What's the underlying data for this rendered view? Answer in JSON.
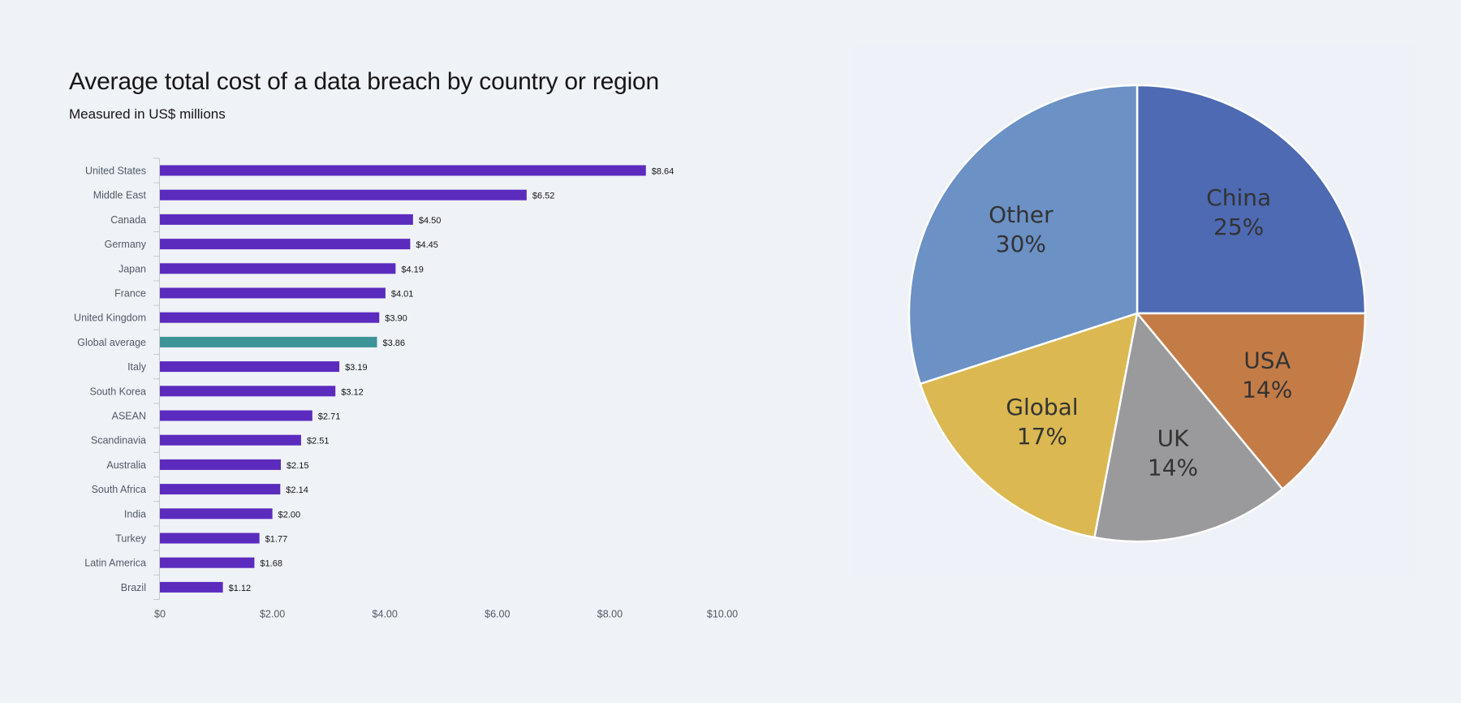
{
  "chart_data": [
    {
      "type": "bar",
      "orientation": "horizontal",
      "title": "Average total cost of a data breach by country or region",
      "subtitle": "Measured in US$ millions",
      "categories": [
        "United States",
        "Middle East",
        "Canada",
        "Germany",
        "Japan",
        "France",
        "United Kingdom",
        "Global average",
        "Italy",
        "South Korea",
        "ASEAN",
        "Scandinavia",
        "Australia",
        "South Africa",
        "India",
        "Turkey",
        "Latin America",
        "Brazil"
      ],
      "values": [
        8.64,
        6.52,
        4.5,
        4.45,
        4.19,
        4.01,
        3.9,
        3.86,
        3.19,
        3.12,
        2.71,
        2.51,
        2.15,
        2.14,
        2.0,
        1.77,
        1.68,
        1.12
      ],
      "value_labels": [
        "$8.64",
        "$6.52",
        "$4.50",
        "$4.45",
        "$4.19",
        "$4.01",
        "$3.90",
        "$3.86",
        "$3.19",
        "$3.12",
        "$2.71",
        "$2.51",
        "$2.15",
        "$2.14",
        "$2.00",
        "$1.77",
        "$1.68",
        "$1.12"
      ],
      "xticks": [
        0,
        2,
        4,
        6,
        8,
        10
      ],
      "xtick_labels": [
        "$0",
        "$2.00",
        "$4.00",
        "$6.00",
        "$8.00",
        "$10.00"
      ],
      "xlim": [
        0,
        10
      ],
      "grid": false,
      "colors": {
        "default": "#5b2bbe",
        "highlight": "#3e9397",
        "highlight_category": "Global average"
      }
    },
    {
      "type": "pie",
      "slices": [
        {
          "label": "China",
          "value": 25,
          "pct_label": "25%",
          "color": "#4d6ab3"
        },
        {
          "label": "USA",
          "value": 14,
          "pct_label": "14%",
          "color": "#c47c47"
        },
        {
          "label": "UK",
          "value": 14,
          "pct_label": "14%",
          "color": "#9a9a9c"
        },
        {
          "label": "Global",
          "value": 17,
          "pct_label": "17%",
          "color": "#dbb851"
        },
        {
          "label": "Other",
          "value": 30,
          "pct_label": "30%",
          "color": "#6b91c5"
        }
      ],
      "start_angle": "12 o'clock",
      "direction": "clockwise"
    }
  ]
}
